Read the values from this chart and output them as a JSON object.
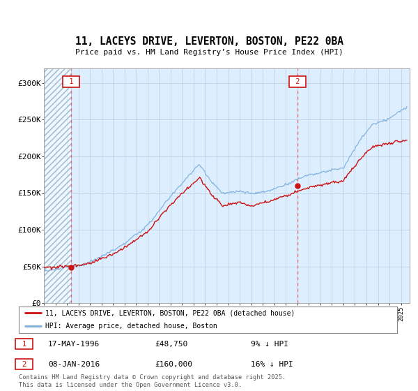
{
  "title": "11, LACEYS DRIVE, LEVERTON, BOSTON, PE22 0BA",
  "subtitle": "Price paid vs. HM Land Registry’s House Price Index (HPI)",
  "sale1_date": "17-MAY-1996",
  "sale1_price": 48750,
  "sale1_label": "9% ↓ HPI",
  "sale2_date": "08-JAN-2016",
  "sale2_price": 160000,
  "sale2_label": "16% ↓ HPI",
  "sale1_x": 1996.38,
  "sale2_x": 2016.03,
  "legend_entry1": "11, LACEYS DRIVE, LEVERTON, BOSTON, PE22 0BA (detached house)",
  "legend_entry2": "HPI: Average price, detached house, Boston",
  "footer": "Contains HM Land Registry data © Crown copyright and database right 2025.\nThis data is licensed under the Open Government Licence v3.0.",
  "hpi_color": "#7aaddc",
  "price_color": "#cc1111",
  "marker_color": "#cc1111",
  "vline_color": "#e87070",
  "background_color": "#ddeeff",
  "ylim": [
    0,
    320000
  ],
  "xlim_start": 1994.0,
  "xlim_end": 2025.75
}
